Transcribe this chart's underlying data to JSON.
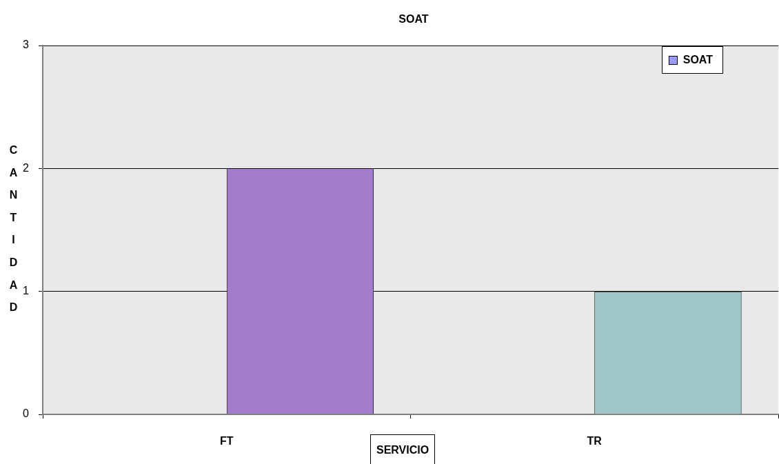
{
  "chart_data": {
    "type": "bar",
    "title": "SOAT",
    "xlabel": "SERVICIO",
    "ylabel": "CANTIDAD",
    "categories": [
      "FT",
      "TR"
    ],
    "series": [
      {
        "values": [
          null,
          null
        ]
      },
      {
        "name": "SOAT",
        "color": "#9999ff",
        "colors": [
          "#a27bcb",
          "#a0c8c8"
        ],
        "values": [
          2,
          1
        ]
      }
    ],
    "ylim": [
      0,
      3
    ],
    "yticks": [
      0,
      1,
      2,
      3
    ],
    "grid": "y",
    "legend": "top right"
  }
}
